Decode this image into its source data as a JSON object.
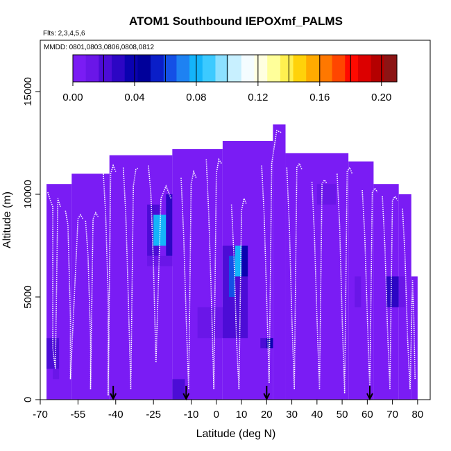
{
  "chart_data": {
    "type": "heatmap",
    "title": "ATOM1 Southbound IEPOXmf_PALMS",
    "flights_note": "Flts: 2,3,4,5,6",
    "dates_note": "MMDD: 0801,0803,0806,0808,0812",
    "xlabel": "Latitude (deg N)",
    "ylabel": "Altitude (m)",
    "xlim": [
      -70,
      85
    ],
    "ylim": [
      0,
      17500
    ],
    "x_ticks": [
      -70,
      -55,
      -40,
      -25,
      -10,
      0,
      10,
      20,
      30,
      40,
      50,
      60,
      70,
      80
    ],
    "x_tick_labels": [
      "-70",
      "-55",
      "-40",
      "-25",
      "-10",
      "0",
      "10",
      "20",
      "30",
      "40",
      "50",
      "60",
      "70",
      "80"
    ],
    "y_ticks": [
      0,
      5000,
      10000,
      15000
    ],
    "y_tick_labels": [
      "0",
      "5000",
      "10000",
      "15000"
    ],
    "colorbar": {
      "min": 0.0,
      "max": 0.21,
      "ticks": [
        0.0,
        0.04,
        0.08,
        0.12,
        0.16,
        0.2
      ],
      "tick_labels": [
        "0.00",
        "0.04",
        "0.08",
        "0.12",
        "0.16",
        "0.20"
      ],
      "colors": [
        "#7a1cf4",
        "#6a16e8",
        "#4c0cd6",
        "#2c06c4",
        "#0a02b0",
        "#00009a",
        "#0a1ec8",
        "#1450e6",
        "#1e82f2",
        "#14b4fa",
        "#3ccaff",
        "#8ce0ff",
        "#c8f0ff",
        "#f4fcff",
        "#ffffe0",
        "#ffff9a",
        "#fff050",
        "#ffd20a",
        "#ffaa00",
        "#ff7800",
        "#ff4600",
        "#ff0a00",
        "#dc0000",
        "#b40000",
        "#8c1414"
      ],
      "divisions": [
        0.0,
        0.02,
        0.04,
        0.06,
        0.08,
        0.1,
        0.12,
        0.14,
        0.16,
        0.18,
        0.2
      ]
    },
    "background_value": 0.0,
    "cells": [
      {
        "lat": [
          -67.5,
          -57.5
        ],
        "alt": [
          0,
          10500
        ],
        "value": 0.0
      },
      {
        "lat": [
          -57.5,
          -42.5
        ],
        "alt": [
          0,
          11000
        ],
        "value": 0.0
      },
      {
        "lat": [
          -42.5,
          -17.5
        ],
        "alt": [
          0,
          11900
        ],
        "value": 0.0
      },
      {
        "lat": [
          -17.5,
          2.5
        ],
        "alt": [
          0,
          12200
        ],
        "value": 0.0
      },
      {
        "lat": [
          2.5,
          22.5
        ],
        "alt": [
          0,
          12600
        ],
        "value": 0.0
      },
      {
        "lat": [
          22.5,
          27.5
        ],
        "alt": [
          0,
          13400
        ],
        "value": 0.0
      },
      {
        "lat": [
          27.5,
          52.5
        ],
        "alt": [
          0,
          12000
        ],
        "value": 0.0
      },
      {
        "lat": [
          52.5,
          62.5
        ],
        "alt": [
          0,
          11600
        ],
        "value": 0.0
      },
      {
        "lat": [
          62.5,
          72.5
        ],
        "alt": [
          0,
          10500
        ],
        "value": 0.0
      },
      {
        "lat": [
          72.5,
          77.5
        ],
        "alt": [
          0,
          10000
        ],
        "value": 0.0
      },
      {
        "lat": [
          77.5,
          80.0
        ],
        "alt": [
          0,
          6000
        ],
        "value": 0.0
      },
      {
        "lat": [
          -67.5,
          -62.5
        ],
        "alt": [
          1500,
          3000
        ],
        "value": 0.022
      },
      {
        "lat": [
          -65.0,
          -62.5
        ],
        "alt": [
          1000,
          1500
        ],
        "value": 0.014
      },
      {
        "lat": [
          -27.5,
          -22.5
        ],
        "alt": [
          7000,
          9500
        ],
        "value": 0.022
      },
      {
        "lat": [
          -25.0,
          -20.0
        ],
        "alt": [
          7500,
          9000
        ],
        "value": 0.082
      },
      {
        "lat": [
          -20.0,
          -17.5
        ],
        "alt": [
          7000,
          10000
        ],
        "value": 0.026
      },
      {
        "lat": [
          -27.5,
          -17.5
        ],
        "alt": [
          6500,
          7000
        ],
        "value": 0.014
      },
      {
        "lat": [
          -17.5,
          -12.5
        ],
        "alt": [
          0,
          1000
        ],
        "value": 0.018
      },
      {
        "lat": [
          -7.5,
          2.5
        ],
        "alt": [
          3000,
          4500
        ],
        "value": 0.012
      },
      {
        "lat": [
          2.5,
          12.5
        ],
        "alt": [
          3000,
          7500
        ],
        "value": 0.02
      },
      {
        "lat": [
          5.0,
          7.5
        ],
        "alt": [
          5000,
          7000
        ],
        "value": 0.062
      },
      {
        "lat": [
          7.5,
          10.0
        ],
        "alt": [
          6000,
          7500
        ],
        "value": 0.082
      },
      {
        "lat": [
          10.0,
          12.5
        ],
        "alt": [
          6000,
          7500
        ],
        "value": 0.034
      },
      {
        "lat": [
          17.5,
          22.5
        ],
        "alt": [
          2500,
          3000
        ],
        "value": 0.018
      },
      {
        "lat": [
          20.0,
          22.5
        ],
        "alt": [
          2500,
          3000
        ],
        "value": 0.034
      },
      {
        "lat": [
          40.0,
          47.5
        ],
        "alt": [
          9500,
          10500
        ],
        "value": 0.012
      },
      {
        "lat": [
          67.5,
          72.5
        ],
        "alt": [
          4500,
          6000
        ],
        "value": 0.026
      },
      {
        "lat": [
          72.5,
          75.0
        ],
        "alt": [
          4500,
          6000
        ],
        "value": 0.014
      },
      {
        "lat": [
          55.0,
          57.5
        ],
        "alt": [
          4500,
          6000
        ],
        "value": 0.012
      }
    ],
    "flight_tracks": [
      {
        "lat": [
          -67,
          -66,
          -65,
          -65,
          -64,
          -63,
          -62
        ],
        "alt": [
          10100,
          9700,
          9400,
          2500,
          1500,
          9800,
          9400
        ]
      },
      {
        "lat": [
          -60,
          -59,
          -58,
          -58,
          -55,
          -54,
          -53
        ],
        "alt": [
          9200,
          8500,
          4000,
          1000,
          8800,
          9000,
          8800
        ]
      },
      {
        "lat": [
          -52,
          -51,
          -50,
          -50,
          -49,
          -48,
          -47
        ],
        "alt": [
          8700,
          7000,
          3000,
          500,
          8800,
          9100,
          8900
        ]
      },
      {
        "lat": [
          -45,
          -44,
          -43,
          -43,
          -42,
          -41,
          -40
        ],
        "alt": [
          11200,
          9000,
          5000,
          200,
          11000,
          11400,
          11100
        ]
      },
      {
        "lat": [
          -37,
          -36,
          -35,
          -34,
          -33,
          -32,
          -31
        ],
        "alt": [
          11300,
          9000,
          5000,
          500,
          10400,
          11200,
          11300
        ]
      },
      {
        "lat": [
          -27,
          -26,
          -25,
          -24,
          -22,
          -20,
          -18
        ],
        "alt": [
          11400,
          10000,
          6500,
          1800,
          9800,
          10400,
          9800
        ]
      },
      {
        "lat": [
          -14,
          -13,
          -12,
          -11,
          -10,
          -9,
          -8
        ],
        "alt": [
          10800,
          8000,
          4000,
          500,
          10500,
          11100,
          10800
        ]
      },
      {
        "lat": [
          -4,
          -3,
          -2,
          -1,
          0,
          1,
          2
        ],
        "alt": [
          11700,
          9000,
          5000,
          500,
          11000,
          11700,
          11500
        ]
      },
      {
        "lat": [
          6,
          7,
          8,
          9,
          10,
          11,
          12
        ],
        "alt": [
          9500,
          7000,
          3000,
          500,
          9200,
          9800,
          9500
        ]
      },
      {
        "lat": [
          18,
          19,
          20,
          21,
          22,
          24,
          26
        ],
        "alt": [
          11400,
          9000,
          5000,
          800,
          11500,
          13100,
          13000
        ]
      },
      {
        "lat": [
          28,
          29,
          30,
          31,
          32,
          33,
          34
        ],
        "alt": [
          11300,
          8500,
          4000,
          500,
          11300,
          11500,
          11200
        ]
      },
      {
        "lat": [
          38,
          39,
          40,
          41,
          42,
          43,
          44
        ],
        "alt": [
          10600,
          8000,
          4000,
          500,
          10500,
          10700,
          10500
        ]
      },
      {
        "lat": [
          48,
          49,
          50,
          51,
          52,
          53,
          54
        ],
        "alt": [
          11000,
          8500,
          4000,
          300,
          11100,
          11300,
          11000
        ]
      },
      {
        "lat": [
          58,
          59,
          60,
          61,
          62,
          63,
          64
        ],
        "alt": [
          10200,
          8000,
          4000,
          500,
          10100,
          10300,
          10100
        ]
      },
      {
        "lat": [
          66,
          67,
          68,
          69,
          70,
          71,
          72
        ],
        "alt": [
          9900,
          7500,
          3500,
          500,
          9700,
          9900,
          9700
        ]
      },
      {
        "lat": [
          74,
          75,
          76,
          77,
          78,
          78.5,
          79
        ],
        "alt": [
          9300,
          7000,
          3000,
          500,
          5800,
          4000,
          1000
        ]
      }
    ],
    "arrows_lat": [
      -41,
      -12,
      20,
      61
    ]
  }
}
